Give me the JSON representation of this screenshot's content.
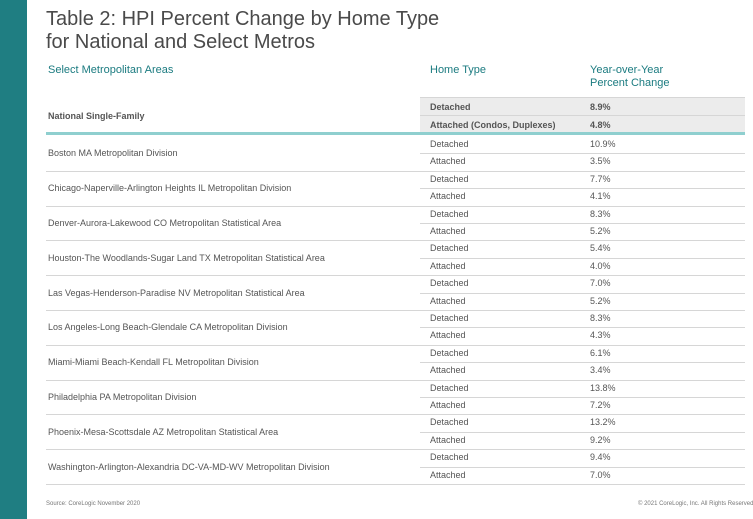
{
  "header": {
    "title_lines": [
      "Table 2: HPI Percent Change by Home Type",
      "for National and Select Metros"
    ]
  },
  "table": {
    "columns": {
      "area": "Select Metropolitan Areas",
      "type": "Home Type",
      "change_lines": [
        "Year-over-Year",
        "Percent Change"
      ]
    },
    "national": {
      "area": "National Single-Family",
      "rows": [
        [
          "Detached",
          "8.9%"
        ],
        [
          "Attached (Condos, Duplexes)",
          "4.8%"
        ]
      ]
    },
    "rows": [
      {
        "area": "Boston MA Metropolitan Division",
        "rows": [
          [
            "Detached",
            "10.9%"
          ],
          [
            "Attached",
            "3.5%"
          ]
        ]
      },
      {
        "area": "Chicago-Naperville-Arlington Heights IL Metropolitan Division",
        "rows": [
          [
            "Detached",
            "7.7%"
          ],
          [
            "Attached",
            "4.1%"
          ]
        ]
      },
      {
        "area": "Denver-Aurora-Lakewood CO Metropolitan Statistical Area",
        "rows": [
          [
            "Detached",
            "8.3%"
          ],
          [
            "Attached",
            "5.2%"
          ]
        ]
      },
      {
        "area": "Houston-The Woodlands-Sugar Land TX Metropolitan Statistical Area",
        "rows": [
          [
            "Detached",
            "5.4%"
          ],
          [
            "Attached",
            "4.0%"
          ]
        ]
      },
      {
        "area": "Las Vegas-Henderson-Paradise NV Metropolitan Statistical Area",
        "rows": [
          [
            "Detached",
            "7.0%"
          ],
          [
            "Attached",
            "5.2%"
          ]
        ]
      },
      {
        "area": "Los Angeles-Long Beach-Glendale CA Metropolitan Division",
        "rows": [
          [
            "Detached",
            "8.3%"
          ],
          [
            "Attached",
            "4.3%"
          ]
        ]
      },
      {
        "area": "Miami-Miami Beach-Kendall FL Metropolitan Division",
        "rows": [
          [
            "Detached",
            "6.1%"
          ],
          [
            "Attached",
            "3.4%"
          ]
        ]
      },
      {
        "area": "Philadelphia PA Metropolitan Division",
        "rows": [
          [
            "Detached",
            "13.8%"
          ],
          [
            "Attached",
            "7.2%"
          ]
        ]
      },
      {
        "area": "Phoenix-Mesa-Scottsdale AZ Metropolitan Statistical Area",
        "rows": [
          [
            "Detached",
            "13.2%"
          ],
          [
            "Attached",
            "9.2%"
          ]
        ]
      },
      {
        "area": "Washington-Arlington-Alexandria DC-VA-MD-WV Metropolitan Division",
        "rows": [
          [
            "Detached",
            "9.4%"
          ],
          [
            "Attached",
            "7.0%"
          ]
        ]
      }
    ]
  },
  "footer": {
    "source": "Source: CoreLogic November 2020",
    "copyright": "© 2021 CoreLogic, Inc. All Rights Reserved"
  }
}
